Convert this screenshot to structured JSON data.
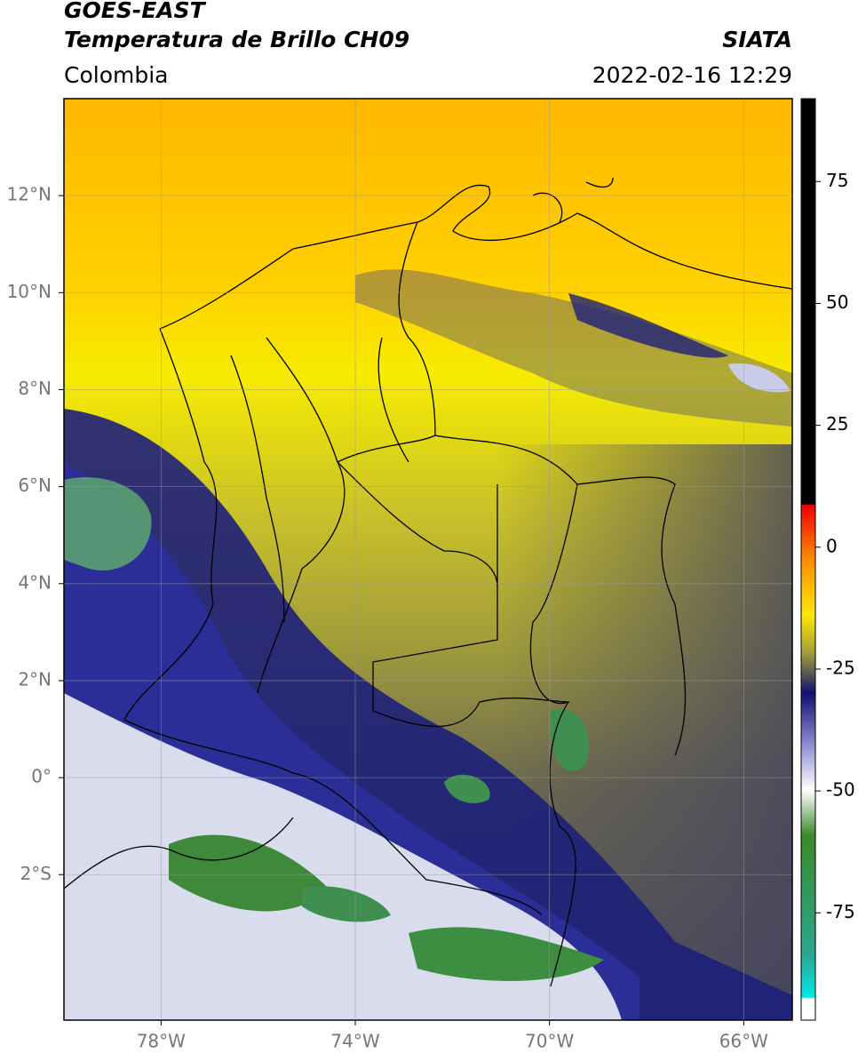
{
  "header": {
    "title": "GOES-EAST",
    "subtitle": "Temperatura de Brillo CH09",
    "source": "SIATA",
    "region": "Colombia",
    "datetime": "2022-02-16 12:29"
  },
  "map": {
    "xlim": [
      -80,
      -65
    ],
    "ylim": [
      -5,
      14
    ],
    "lon_ticks": [
      {
        "value": -78,
        "label": "78°W"
      },
      {
        "value": -74,
        "label": "74°W"
      },
      {
        "value": -70,
        "label": "70°W"
      },
      {
        "value": -66,
        "label": "66°W"
      }
    ],
    "lat_ticks": [
      {
        "value": 12,
        "label": "12°N"
      },
      {
        "value": 10,
        "label": "10°N"
      },
      {
        "value": 8,
        "label": "8°N"
      },
      {
        "value": 6,
        "label": "6°N"
      },
      {
        "value": 4,
        "label": "4°N"
      },
      {
        "value": 2,
        "label": "2°N"
      },
      {
        "value": 0,
        "label": "0°"
      },
      {
        "value": -2,
        "label": "2°S"
      }
    ],
    "grid": true
  },
  "colorbar": {
    "lim": [
      -97,
      92
    ],
    "ticks": [
      75,
      50,
      25,
      0,
      -25,
      -50,
      -75
    ]
  }
}
